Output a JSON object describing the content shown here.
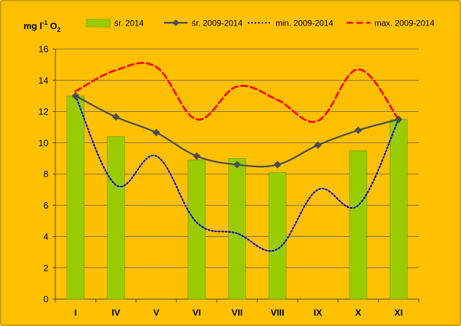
{
  "chart_data": {
    "type": "bar",
    "categories": [
      "I",
      "IV",
      "V",
      "VI",
      "VII",
      "VIII",
      "IX",
      "X",
      "XI"
    ],
    "ylabel": "mg l-1 O2",
    "ylabel_parts": {
      "base": "mg l",
      "sup": "-1",
      "mid": " O",
      "sub": "2"
    },
    "ylim": [
      0,
      16
    ],
    "yticks": [
      0,
      2,
      4,
      6,
      8,
      10,
      12,
      14,
      16
    ],
    "grid": true,
    "legend_position": "top",
    "series": [
      {
        "name": "śr. 2014",
        "kind": "bar",
        "color": "#99cc00",
        "values": [
          13.0,
          10.4,
          null,
          8.9,
          9.0,
          8.1,
          null,
          9.5,
          11.5
        ]
      },
      {
        "name": "śr. 2009-2014",
        "kind": "line",
        "style": "solid-diamond",
        "color": "#4d4d4d",
        "values": [
          13.0,
          11.65,
          10.65,
          9.15,
          8.6,
          8.6,
          9.85,
          10.8,
          11.5
        ]
      },
      {
        "name": "min. 2009-2014",
        "kind": "line",
        "style": "dotted",
        "color": "#0000cc",
        "values": [
          13.0,
          7.3,
          9.15,
          4.9,
          4.2,
          3.2,
          7.0,
          6.0,
          11.5
        ]
      },
      {
        "name": "max. 2009-2014",
        "kind": "line",
        "style": "dashed",
        "color": "#ff0000",
        "values": [
          13.3,
          14.65,
          14.85,
          11.5,
          13.6,
          12.75,
          11.4,
          14.7,
          11.5
        ]
      }
    ]
  }
}
